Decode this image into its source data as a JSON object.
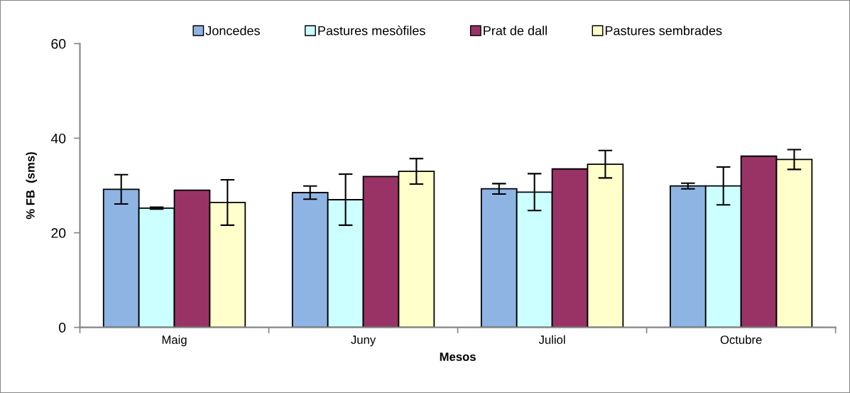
{
  "chart_data": {
    "type": "bar",
    "xlabel": "Mesos",
    "ylabel": "% FB  (sms)",
    "categories": [
      "Maig",
      "Juny",
      "Juliol",
      "Octubre"
    ],
    "series": [
      {
        "name": "Joncedes",
        "color": "#8eb4e3",
        "values": [
          29.2,
          28.5,
          29.3,
          29.9
        ],
        "errors": [
          3.1,
          1.4,
          1.1,
          0.6
        ]
      },
      {
        "name": "Pastures mesòfiles",
        "color": "#ccffff",
        "values": [
          25.2,
          27.0,
          28.6,
          29.9
        ],
        "errors": [
          0.2,
          5.4,
          3.9,
          4.0
        ]
      },
      {
        "name": "Prat de dall",
        "color": "#993366",
        "values": [
          29.0,
          31.9,
          33.5,
          36.2
        ],
        "errors": [
          null,
          null,
          null,
          null
        ]
      },
      {
        "name": "Pastures sembrades",
        "color": "#ffffcc",
        "values": [
          26.4,
          33.0,
          34.5,
          35.5
        ],
        "errors": [
          4.8,
          2.7,
          2.9,
          2.1
        ]
      }
    ],
    "ylim": [
      0,
      60
    ],
    "yticks": [
      0,
      20,
      40,
      60
    ],
    "grid": false,
    "legend": "top"
  }
}
